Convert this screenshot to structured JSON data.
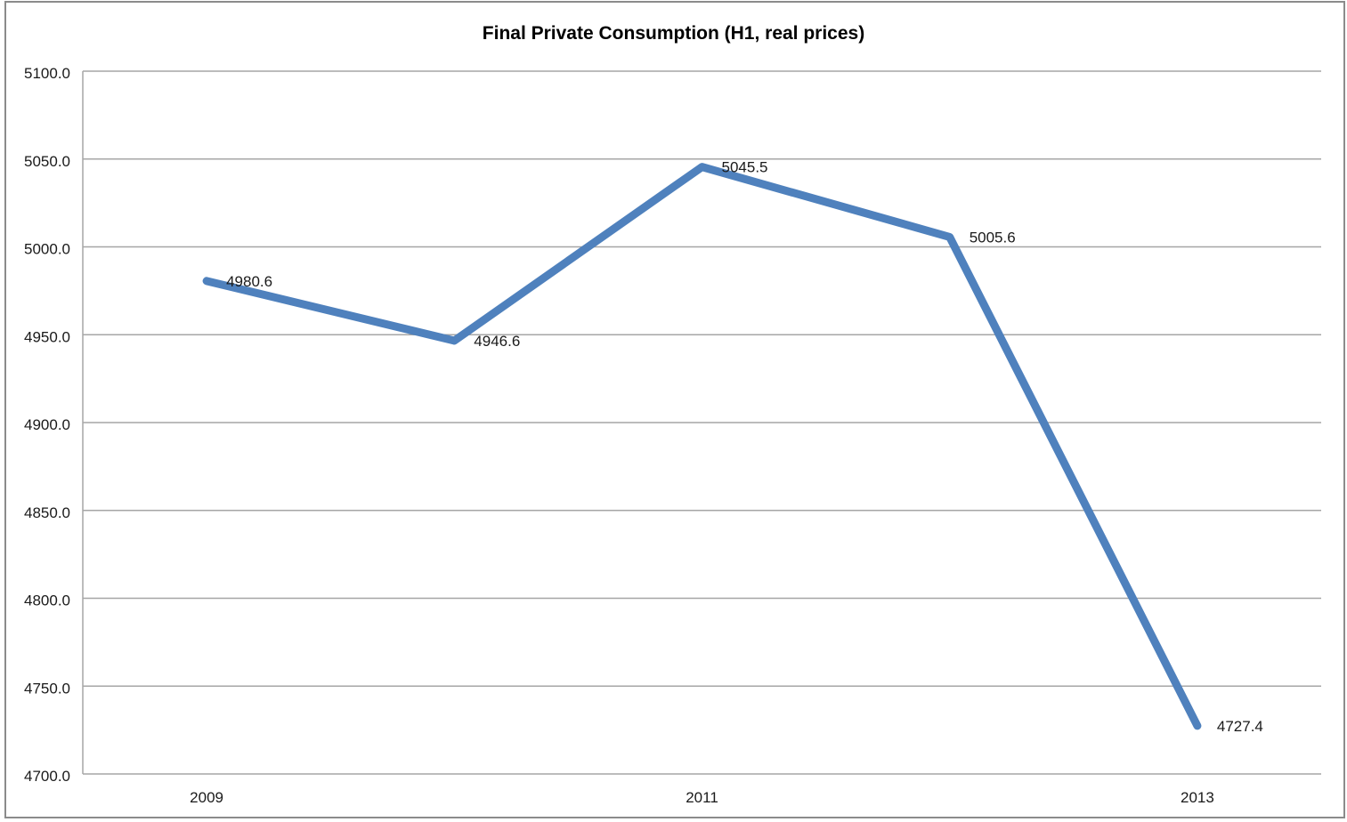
{
  "window": {
    "background_color": "#ffffff",
    "border_color": "#8b8b8b"
  },
  "chart_data": {
    "type": "line",
    "title": "Final Private Consumption (H1, real prices)",
    "x": [
      "2009",
      "2010",
      "2011",
      "2012",
      "2013"
    ],
    "x_tick_labels_shown": [
      "2009",
      "2011",
      "2013"
    ],
    "series": [
      {
        "values": [
          4980.6,
          4946.6,
          5045.5,
          5005.6,
          4727.4
        ],
        "color": "#4F81BD",
        "stroke_width": 9
      }
    ],
    "data_labels": [
      "4980.6",
      "4946.6",
      "5045.5",
      "5005.6",
      "4727.4"
    ],
    "data_label_position": "right",
    "xlabel": "",
    "ylabel": "",
    "ylim": [
      4700,
      5100
    ],
    "y_tick_values": [
      5100,
      5050,
      5000,
      4950,
      4900,
      4850,
      4800,
      4750,
      4700
    ],
    "y_tick_labels": [
      "5100.0",
      "5050.0",
      "5000.0",
      "4950.0",
      "4900.0",
      "4850.0",
      "4800.0",
      "4750.0",
      "4700.0"
    ],
    "grid": true,
    "gridline_color": "#a6a6a6",
    "axis_color": "#a6a6a6",
    "text_color": "#1a1a1a",
    "legend": "none"
  }
}
